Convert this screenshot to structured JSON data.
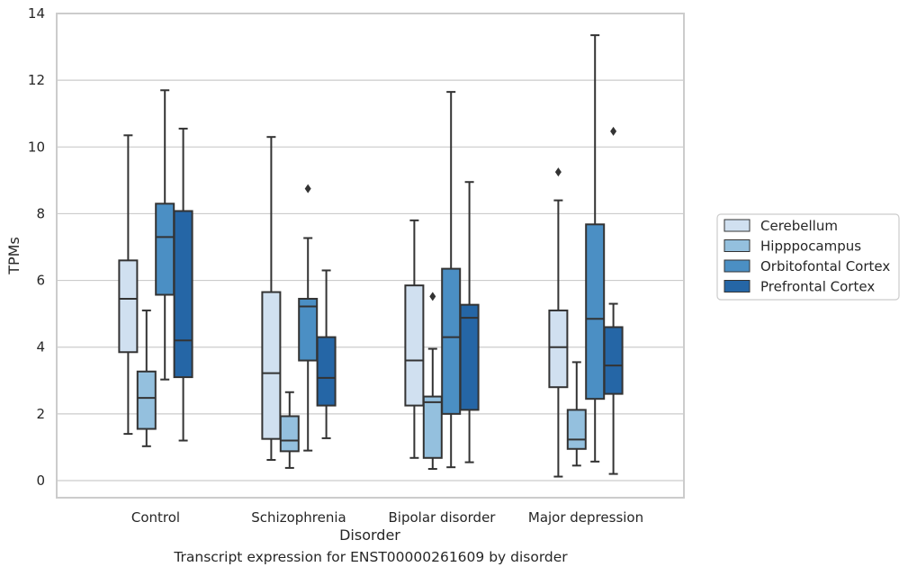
{
  "caption": "Transcript expression for ENST00000261609 by disorder",
  "chart_data": {
    "type": "box",
    "xlabel": "Disorder",
    "ylabel": "TPMs",
    "ylim": [
      -0.5,
      14
    ],
    "yticks": [
      0,
      2,
      4,
      6,
      8,
      10,
      12,
      14
    ],
    "grid": "horizontal",
    "legend_position": "right",
    "categories": [
      "Control",
      "Schizophrenia",
      "Bipolar disorder",
      "Major depression"
    ],
    "series": [
      {
        "name": "Cerebellum",
        "color": "#d0e0f0",
        "boxes": [
          {
            "min": 1.4,
            "q1": 3.85,
            "median": 5.45,
            "q3": 6.6,
            "max": 10.35,
            "outliers": []
          },
          {
            "min": 0.62,
            "q1": 1.25,
            "median": 3.22,
            "q3": 5.65,
            "max": 10.3,
            "outliers": []
          },
          {
            "min": 0.68,
            "q1": 2.25,
            "median": 3.6,
            "q3": 5.85,
            "max": 7.8,
            "outliers": []
          },
          {
            "min": 0.12,
            "q1": 2.8,
            "median": 4.0,
            "q3": 5.1,
            "max": 8.4,
            "outliers": [
              9.25
            ]
          }
        ]
      },
      {
        "name": "Hipppocampus",
        "color": "#94c0de",
        "boxes": [
          {
            "min": 1.03,
            "q1": 1.55,
            "median": 2.48,
            "q3": 3.27,
            "max": 5.1,
            "outliers": []
          },
          {
            "min": 0.38,
            "q1": 0.88,
            "median": 1.2,
            "q3": 1.93,
            "max": 2.65,
            "outliers": []
          },
          {
            "min": 0.35,
            "q1": 0.68,
            "median": 2.35,
            "q3": 2.52,
            "max": 3.95,
            "outliers": [
              5.52
            ]
          },
          {
            "min": 0.45,
            "q1": 0.95,
            "median": 1.23,
            "q3": 2.12,
            "max": 3.55,
            "outliers": []
          }
        ]
      },
      {
        "name": "Orbitofontal Cortex",
        "color": "#4b8fc4",
        "boxes": [
          {
            "min": 3.03,
            "q1": 5.57,
            "median": 7.3,
            "q3": 8.3,
            "max": 11.7,
            "outliers": []
          },
          {
            "min": 0.9,
            "q1": 3.6,
            "median": 5.22,
            "q3": 5.45,
            "max": 7.27,
            "outliers": [
              8.75
            ]
          },
          {
            "min": 0.4,
            "q1": 2.0,
            "median": 4.3,
            "q3": 6.35,
            "max": 11.65,
            "outliers": []
          },
          {
            "min": 0.57,
            "q1": 2.45,
            "median": 4.85,
            "q3": 7.68,
            "max": 13.35,
            "outliers": []
          }
        ]
      },
      {
        "name": "Prefrontal Cortex",
        "color": "#2566a6",
        "boxes": [
          {
            "min": 1.2,
            "q1": 3.1,
            "median": 4.2,
            "q3": 8.08,
            "max": 10.55,
            "outliers": []
          },
          {
            "min": 1.27,
            "q1": 2.25,
            "median": 3.08,
            "q3": 4.3,
            "max": 6.3,
            "outliers": []
          },
          {
            "min": 0.55,
            "q1": 2.12,
            "median": 4.88,
            "q3": 5.27,
            "max": 8.95,
            "outliers": []
          },
          {
            "min": 0.2,
            "q1": 2.6,
            "median": 3.45,
            "q3": 4.6,
            "max": 5.3,
            "outliers": [
              10.47
            ]
          }
        ]
      }
    ]
  }
}
